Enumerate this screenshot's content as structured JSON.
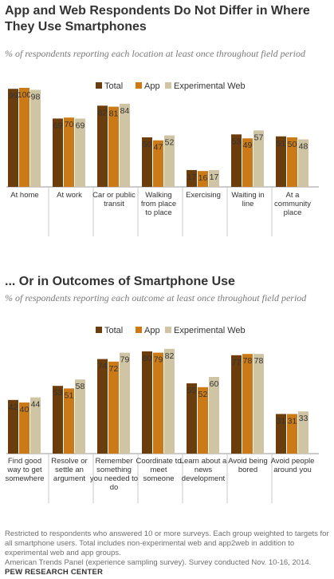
{
  "colors": {
    "total": "#6b3d0c",
    "app": "#cc7a17",
    "web": "#cfc5a4"
  },
  "chart_data": [
    {
      "type": "bar",
      "title": "App and Web Respondents  Do Not Differ in Where They Use Smartphones",
      "subtitle": "% of respondents reporting each location at least once throughout field period",
      "legend_position": "top-right",
      "grid": false,
      "ylim": [
        0,
        100
      ],
      "categories": [
        "At home",
        "At work",
        "Car or public transit",
        "Walking from place to place",
        "Exercising",
        "Waiting in line",
        "At a community place"
      ],
      "category_lines": [
        [
          "At home"
        ],
        [
          "At work"
        ],
        [
          "Car or public",
          "transit"
        ],
        [
          "Walking",
          "from place",
          "to place"
        ],
        [
          "Exercising"
        ],
        [
          "Waiting in",
          "line"
        ],
        [
          "At a",
          "community",
          "place"
        ]
      ],
      "series": [
        {
          "name": "Total",
          "values": [
            99,
            69,
            82,
            50,
            17,
            53,
            51
          ]
        },
        {
          "name": "App",
          "values": [
            100,
            70,
            81,
            47,
            16,
            49,
            50
          ]
        },
        {
          "name": "Experimental Web",
          "values": [
            98,
            69,
            84,
            52,
            17,
            57,
            48
          ]
        }
      ]
    },
    {
      "type": "bar",
      "title": "... Or in Outcomes of Smartphone Use",
      "subtitle": "% of respondents reporting each outcome at least once throughout field period",
      "legend_position": "top-right",
      "grid": false,
      "ylim": [
        0,
        100
      ],
      "categories": [
        "Find good way to get somewhere",
        "Resolve or settle an argument",
        "Remember something you needed to do",
        "Coordinate to meet someone",
        "Learn about a news development",
        "Avoid being bored",
        "Avoid people around you"
      ],
      "category_lines": [
        [
          "Find good",
          "way to get",
          "somewhere"
        ],
        [
          "Resolve or",
          "settle an",
          "argument"
        ],
        [
          "Remember",
          "something",
          "you needed to",
          "do"
        ],
        [
          "Coordinate to",
          "meet",
          "someone"
        ],
        [
          "Learn about a",
          "news",
          "development"
        ],
        [
          "Avoid being",
          "bored"
        ],
        [
          "Avoid people",
          "around you"
        ]
      ],
      "series": [
        {
          "name": "Total",
          "values": [
            42,
            53,
            74,
            80,
            55,
            77,
            31
          ]
        },
        {
          "name": "App",
          "values": [
            40,
            51,
            72,
            79,
            52,
            78,
            31
          ]
        },
        {
          "name": "Experimental Web",
          "values": [
            44,
            58,
            79,
            82,
            60,
            78,
            33
          ]
        }
      ]
    }
  ],
  "notes": {
    "line1": "Restricted to respondents who answered 10 or more surveys. Each group weighted to targets for all smartphone users. Total includes non-experimental web and app2web in addition to experimental web and app groups.",
    "line2": "American Trends Panel (experience sampling survey). Survey conducted Nov. 10-16, 2014."
  },
  "source": "PEW RESEARCH CENTER"
}
